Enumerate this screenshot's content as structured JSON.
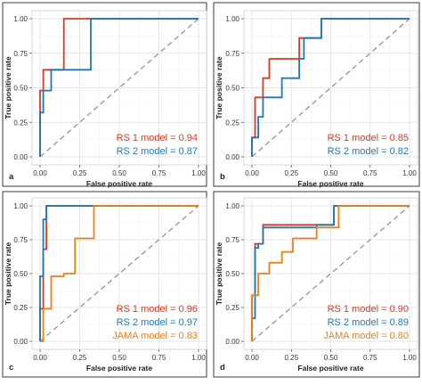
{
  "figure": {
    "panels": [
      {
        "panel_label": "a",
        "chart_data": {
          "type": "line",
          "xlabel": "False positive rate",
          "ylabel": "True positive rate",
          "xlim": [
            0,
            1
          ],
          "ylim": [
            0,
            1
          ],
          "x_ticks": [
            "0.00",
            "0.25",
            "0.50",
            "0.75",
            "1.00"
          ],
          "y_ticks": [
            "0.00",
            "0.25",
            "0.50",
            "0.75",
            "1.00"
          ],
          "grid": true,
          "reference_line": "diagonal-dashed",
          "legend_entries": [
            "RS 1 model = 0.94",
            "RS 2 model = 0.87"
          ],
          "legend_position": "bottom-right",
          "series": [
            {
              "color": "#d93a26",
              "points": [
                [
                  0,
                  0
                ],
                [
                  0,
                  0.32
                ],
                [
                  0,
                  0.48
                ],
                [
                  0.02,
                  0.48
                ],
                [
                  0.02,
                  0.63
                ],
                [
                  0.15,
                  0.63
                ],
                [
                  0.15,
                  1
                ],
                [
                  1,
                  1
                ]
              ]
            },
            {
              "color": "#1f78b4",
              "points": [
                [
                  0,
                  0
                ],
                [
                  0,
                  0.32
                ],
                [
                  0.02,
                  0.32
                ],
                [
                  0.02,
                  0.48
                ],
                [
                  0.07,
                  0.48
                ],
                [
                  0.07,
                  0.63
                ],
                [
                  0.32,
                  0.63
                ],
                [
                  0.32,
                  1
                ],
                [
                  1,
                  1
                ]
              ]
            }
          ]
        }
      },
      {
        "panel_label": "b",
        "chart_data": {
          "type": "line",
          "xlabel": "False positive rate",
          "ylabel": "True positive rate",
          "xlim": [
            0,
            1
          ],
          "ylim": [
            0,
            1
          ],
          "x_ticks": [
            "0.00",
            "0.25",
            "0.50",
            "0.75",
            "1.00"
          ],
          "y_ticks": [
            "0.00",
            "0.25",
            "0.50",
            "0.75",
            "1.00"
          ],
          "grid": true,
          "reference_line": "diagonal-dashed",
          "legend_entries": [
            "RS 1 model = 0.85",
            "RS 2 model = 0.82"
          ],
          "legend_position": "bottom-right",
          "series": [
            {
              "color": "#d93a26",
              "points": [
                [
                  0,
                  0
                ],
                [
                  0,
                  0.14
                ],
                [
                  0.02,
                  0.14
                ],
                [
                  0.02,
                  0.43
                ],
                [
                  0.07,
                  0.43
                ],
                [
                  0.07,
                  0.57
                ],
                [
                  0.11,
                  0.57
                ],
                [
                  0.11,
                  0.71
                ],
                [
                  0.3,
                  0.71
                ],
                [
                  0.3,
                  0.86
                ],
                [
                  0.44,
                  0.86
                ],
                [
                  0.44,
                  1
                ],
                [
                  1,
                  1
                ]
              ]
            },
            {
              "color": "#1f78b4",
              "points": [
                [
                  0,
                  0
                ],
                [
                  0,
                  0.14
                ],
                [
                  0.04,
                  0.14
                ],
                [
                  0.04,
                  0.29
                ],
                [
                  0.07,
                  0.29
                ],
                [
                  0.07,
                  0.43
                ],
                [
                  0.19,
                  0.43
                ],
                [
                  0.19,
                  0.57
                ],
                [
                  0.3,
                  0.57
                ],
                [
                  0.3,
                  0.71
                ],
                [
                  0.33,
                  0.71
                ],
                [
                  0.33,
                  0.86
                ],
                [
                  0.44,
                  0.86
                ],
                [
                  0.44,
                  1
                ],
                [
                  1,
                  1
                ]
              ]
            }
          ]
        }
      },
      {
        "panel_label": "c",
        "chart_data": {
          "type": "line",
          "xlabel": "False positive rate",
          "ylabel": "True positive rate",
          "xlim": [
            0,
            1
          ],
          "ylim": [
            0,
            1
          ],
          "x_ticks": [
            "0.00",
            "0.25",
            "0.50",
            "0.75",
            "1.00"
          ],
          "y_ticks": [
            "0.00",
            "0.25",
            "0.50",
            "0.75",
            "1.00"
          ],
          "grid": true,
          "reference_line": "diagonal-dashed",
          "legend_entries": [
            "RS 1 model = 0.96",
            "RS 2 model = 0.97",
            "JAMA model = 0.83"
          ],
          "legend_position": "bottom-right",
          "series": [
            {
              "color": "#d93a26",
              "points": [
                [
                  0,
                  0
                ],
                [
                  0,
                  0.24
                ],
                [
                  0.02,
                  0.24
                ],
                [
                  0.02,
                  0.68
                ],
                [
                  0.04,
                  0.68
                ],
                [
                  0.04,
                  1
                ],
                [
                  1,
                  1
                ]
              ]
            },
            {
              "color": "#1f78b4",
              "points": [
                [
                  0,
                  0
                ],
                [
                  0,
                  0.48
                ],
                [
                  0.02,
                  0.48
                ],
                [
                  0.02,
                  0.9
                ],
                [
                  0.04,
                  0.9
                ],
                [
                  0.04,
                  1
                ],
                [
                  1,
                  1
                ]
              ]
            },
            {
              "color": "#f07f1a",
              "points": [
                [
                  0,
                  0
                ],
                [
                  0.02,
                  0
                ],
                [
                  0.02,
                  0.24
                ],
                [
                  0.07,
                  0.24
                ],
                [
                  0.07,
                  0.48
                ],
                [
                  0.15,
                  0.48
                ],
                [
                  0.15,
                  0.5
                ],
                [
                  0.22,
                  0.5
                ],
                [
                  0.22,
                  0.76
                ],
                [
                  0.34,
                  0.76
                ],
                [
                  0.34,
                  1
                ],
                [
                  1,
                  1
                ]
              ]
            }
          ]
        }
      },
      {
        "panel_label": "d",
        "chart_data": {
          "type": "line",
          "xlabel": "False positive rate",
          "ylabel": "True positive rate",
          "xlim": [
            0,
            1
          ],
          "ylim": [
            0,
            1
          ],
          "x_ticks": [
            "0.00",
            "0.25",
            "0.50",
            "0.75",
            "1.00"
          ],
          "y_ticks": [
            "0.00",
            "0.25",
            "0.50",
            "0.75",
            "1.00"
          ],
          "grid": true,
          "reference_line": "diagonal-dashed",
          "legend_entries": [
            "RS 1 model = 0.90",
            "RS 2 model = 0.89",
            "JAMA model = 0.80"
          ],
          "legend_position": "bottom-right",
          "series": [
            {
              "color": "#d93a26",
              "points": [
                [
                  0,
                  0
                ],
                [
                  0,
                  0.34
                ],
                [
                  0.02,
                  0.34
                ],
                [
                  0.02,
                  0.72
                ],
                [
                  0.07,
                  0.72
                ],
                [
                  0.07,
                  0.86
                ],
                [
                  0.52,
                  0.86
                ],
                [
                  0.52,
                  1
                ],
                [
                  1,
                  1
                ]
              ]
            },
            {
              "color": "#1f78b4",
              "points": [
                [
                  0,
                  0
                ],
                [
                  0,
                  0.17
                ],
                [
                  0.02,
                  0.17
                ],
                [
                  0.02,
                  0.69
                ],
                [
                  0.04,
                  0.69
                ],
                [
                  0.04,
                  0.72
                ],
                [
                  0.07,
                  0.72
                ],
                [
                  0.07,
                  0.84
                ],
                [
                  0.41,
                  0.84
                ],
                [
                  0.41,
                  0.86
                ],
                [
                  0.52,
                  0.86
                ],
                [
                  0.52,
                  1
                ],
                [
                  1,
                  1
                ]
              ]
            },
            {
              "color": "#f07f1a",
              "points": [
                [
                  0,
                  0
                ],
                [
                  0,
                  0.34
                ],
                [
                  0.04,
                  0.34
                ],
                [
                  0.04,
                  0.5
                ],
                [
                  0.11,
                  0.5
                ],
                [
                  0.11,
                  0.58
                ],
                [
                  0.19,
                  0.58
                ],
                [
                  0.19,
                  0.66
                ],
                [
                  0.26,
                  0.66
                ],
                [
                  0.26,
                  0.76
                ],
                [
                  0.41,
                  0.76
                ],
                [
                  0.41,
                  0.84
                ],
                [
                  0.55,
                  0.84
                ],
                [
                  0.55,
                  1
                ],
                [
                  1,
                  1
                ]
              ]
            }
          ]
        }
      }
    ]
  }
}
